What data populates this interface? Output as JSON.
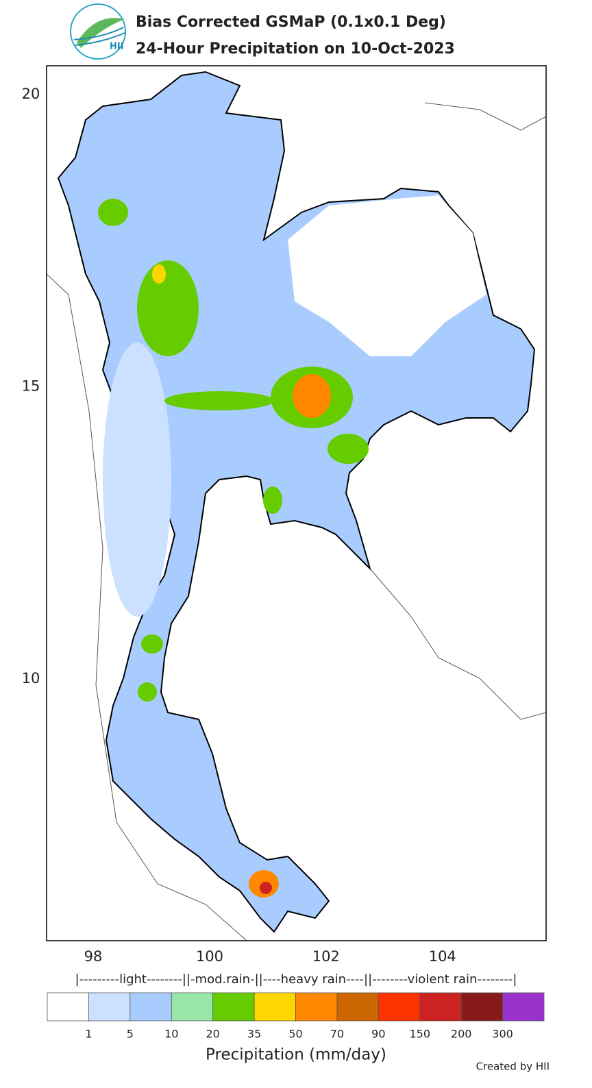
{
  "header": {
    "logo_text": "HII",
    "title_line1": "Bias Corrected GSMaP (0.1x0.1 Deg)",
    "title_line2": "24-Hour Precipitation on 10-Oct-2023"
  },
  "map": {
    "xlim": [
      97.2,
      105.78
    ],
    "ylim": [
      5.52,
      20.49
    ],
    "xticks": [
      98,
      100,
      102,
      104
    ],
    "yticks": [
      10,
      15,
      20
    ]
  },
  "colorbar": {
    "categories": "|---------light--------||-mod.rain-||----heavy rain----||--------violent rain--------|",
    "colors": [
      "#ffffff",
      "#cce0ff",
      "#a9ccff",
      "#98e6a8",
      "#66cc00",
      "#ffd700",
      "#ff8800",
      "#cc6600",
      "#ff3300",
      "#cc2222",
      "#881a1a",
      "#9933cc"
    ],
    "bounds": [
      1,
      5,
      10,
      20,
      35,
      50,
      70,
      90,
      150,
      200,
      300
    ],
    "label": "Precipitation (mm/day)"
  },
  "footer": {
    "credit": "Created by HII"
  }
}
